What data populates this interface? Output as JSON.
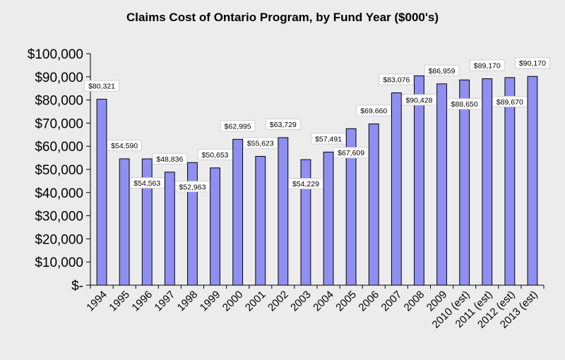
{
  "chart_data": {
    "type": "bar",
    "title": "Claims Cost of Ontario Program, by Fund Year ($000's)",
    "xlabel": "",
    "ylabel": "",
    "ylim": [
      0,
      100000
    ],
    "y_ticks": [
      0,
      10000,
      20000,
      30000,
      40000,
      50000,
      60000,
      70000,
      80000,
      90000,
      100000
    ],
    "y_tick_labels": [
      "$-",
      "$10,000",
      "$20,000",
      "$30,000",
      "$40,000",
      "$50,000",
      "$60,000",
      "$70,000",
      "$80,000",
      "$90,000",
      "$100,000"
    ],
    "grid": false,
    "legend": "none",
    "categories": [
      "1994",
      "1995",
      "1996",
      "1997",
      "1998",
      "1999",
      "2000",
      "2001",
      "2002",
      "2003",
      "2004",
      "2005",
      "2006",
      "2007",
      "2008",
      "2009",
      "2010 (est)",
      "2011 (est)",
      "2012 (est)",
      "2013 (est)"
    ],
    "values": [
      80321,
      54590,
      54563,
      48836,
      52963,
      50653,
      62995,
      55623,
      63729,
      54229,
      57491,
      67609,
      69660,
      83076,
      90428,
      86959,
      88650,
      89170,
      89670,
      90170
    ],
    "data_labels": [
      "$80,321",
      "$54,590",
      "$54,563",
      "$48,836",
      "$52,963",
      "$50,653",
      "$62,995",
      "$55,623",
      "$63,729",
      "$54,229",
      "$57,491",
      "$67,609",
      "$69,660",
      "$83,076",
      "$90,428",
      "$86,959",
      "$88,650",
      "$89,170",
      "$89,670",
      "$90,170"
    ],
    "label_position": [
      "above",
      "above",
      "below",
      "above",
      "below",
      "above",
      "above",
      "above",
      "above",
      "below",
      "above",
      "below",
      "above",
      "above",
      "below",
      "above",
      "below",
      "above",
      "below",
      "above"
    ]
  },
  "colors": {
    "bar_fill": "#8f8ff2",
    "background": "#ececec",
    "label_box": "#ffffff"
  }
}
